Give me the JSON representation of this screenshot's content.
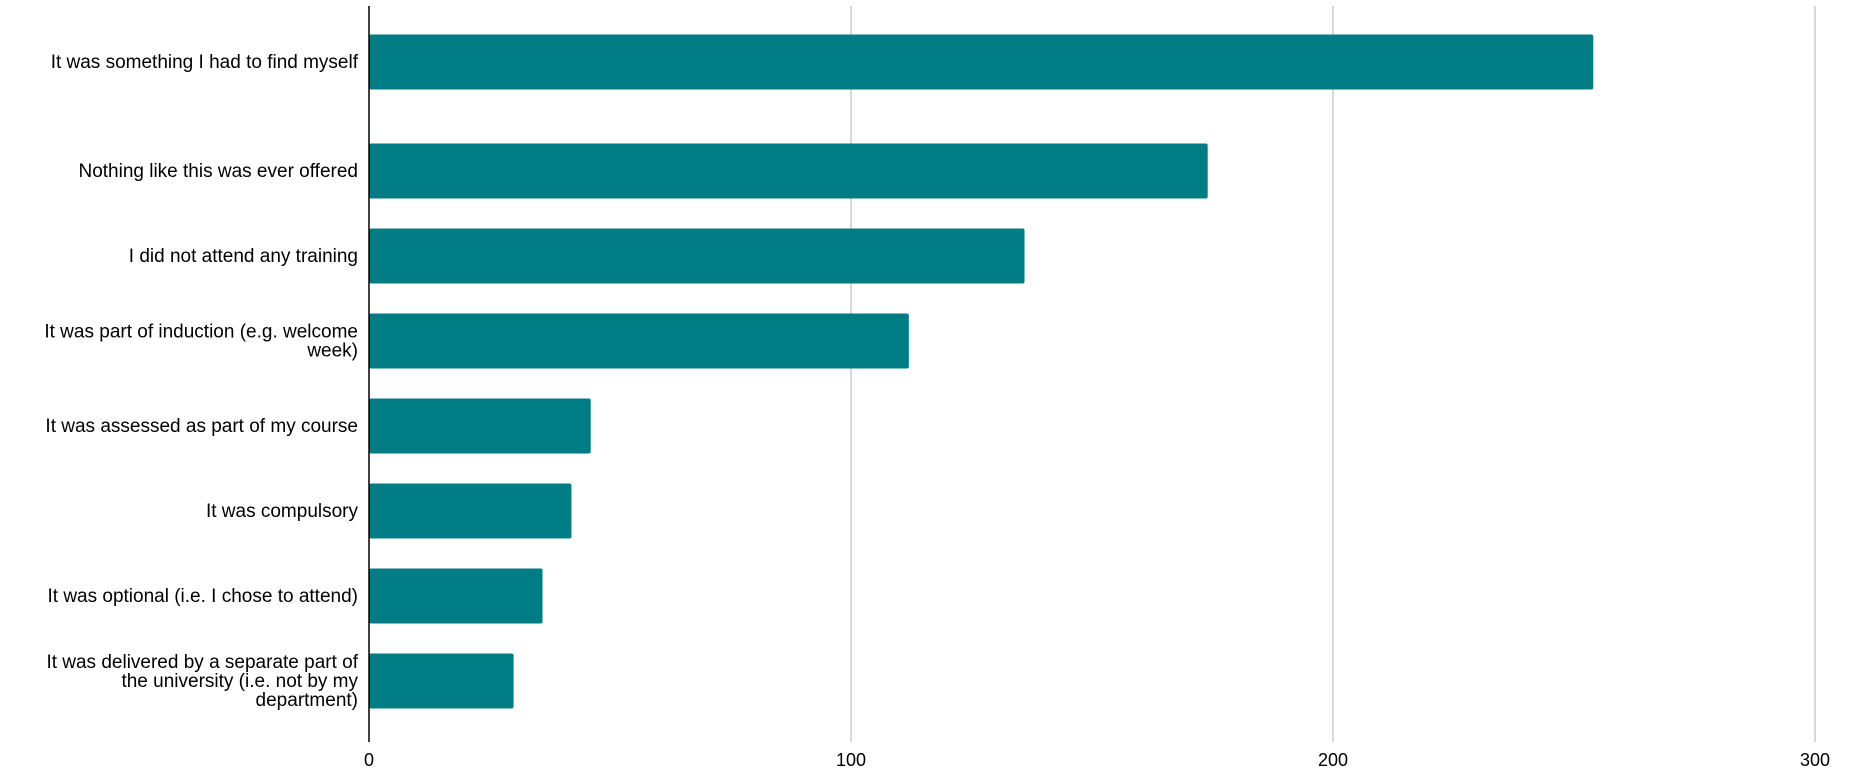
{
  "chart_data": {
    "type": "bar",
    "orientation": "horizontal",
    "title": "",
    "xlabel": "",
    "ylabel": "",
    "categories": [
      "It was something I had to find myself",
      "Nothing like this was ever offered",
      "I did not attend any training",
      "It was part of induction (e.g. welcome week)",
      "It was assessed as part of my course",
      "It was compulsory",
      "It was optional (i.e. I chose to attend)",
      "It was delivered by a separate part of the university (i.e. not by my department)"
    ],
    "category_lines": [
      [
        "It was something I had to find myself"
      ],
      [
        "Nothing like this was ever offered"
      ],
      [
        "I did not attend any training"
      ],
      [
        "It was part of induction (e.g. welcome",
        "week)"
      ],
      [
        "It was assessed as part of my course"
      ],
      [
        "It was compulsory"
      ],
      [
        "It was optional (i.e. I chose to attend)"
      ],
      [
        "It was delivered by a separate part of",
        "the university (i.e. not by my",
        "department)"
      ]
    ],
    "values": [
      254,
      174,
      136,
      112,
      46,
      42,
      36,
      30
    ],
    "xlim": [
      0,
      300
    ],
    "xticks": [
      0,
      100,
      200,
      300
    ],
    "grid": "vertical",
    "legend": "none",
    "bar_color": "#007d84",
    "grid_color": "#cccccc",
    "axis_color": "#000000"
  }
}
